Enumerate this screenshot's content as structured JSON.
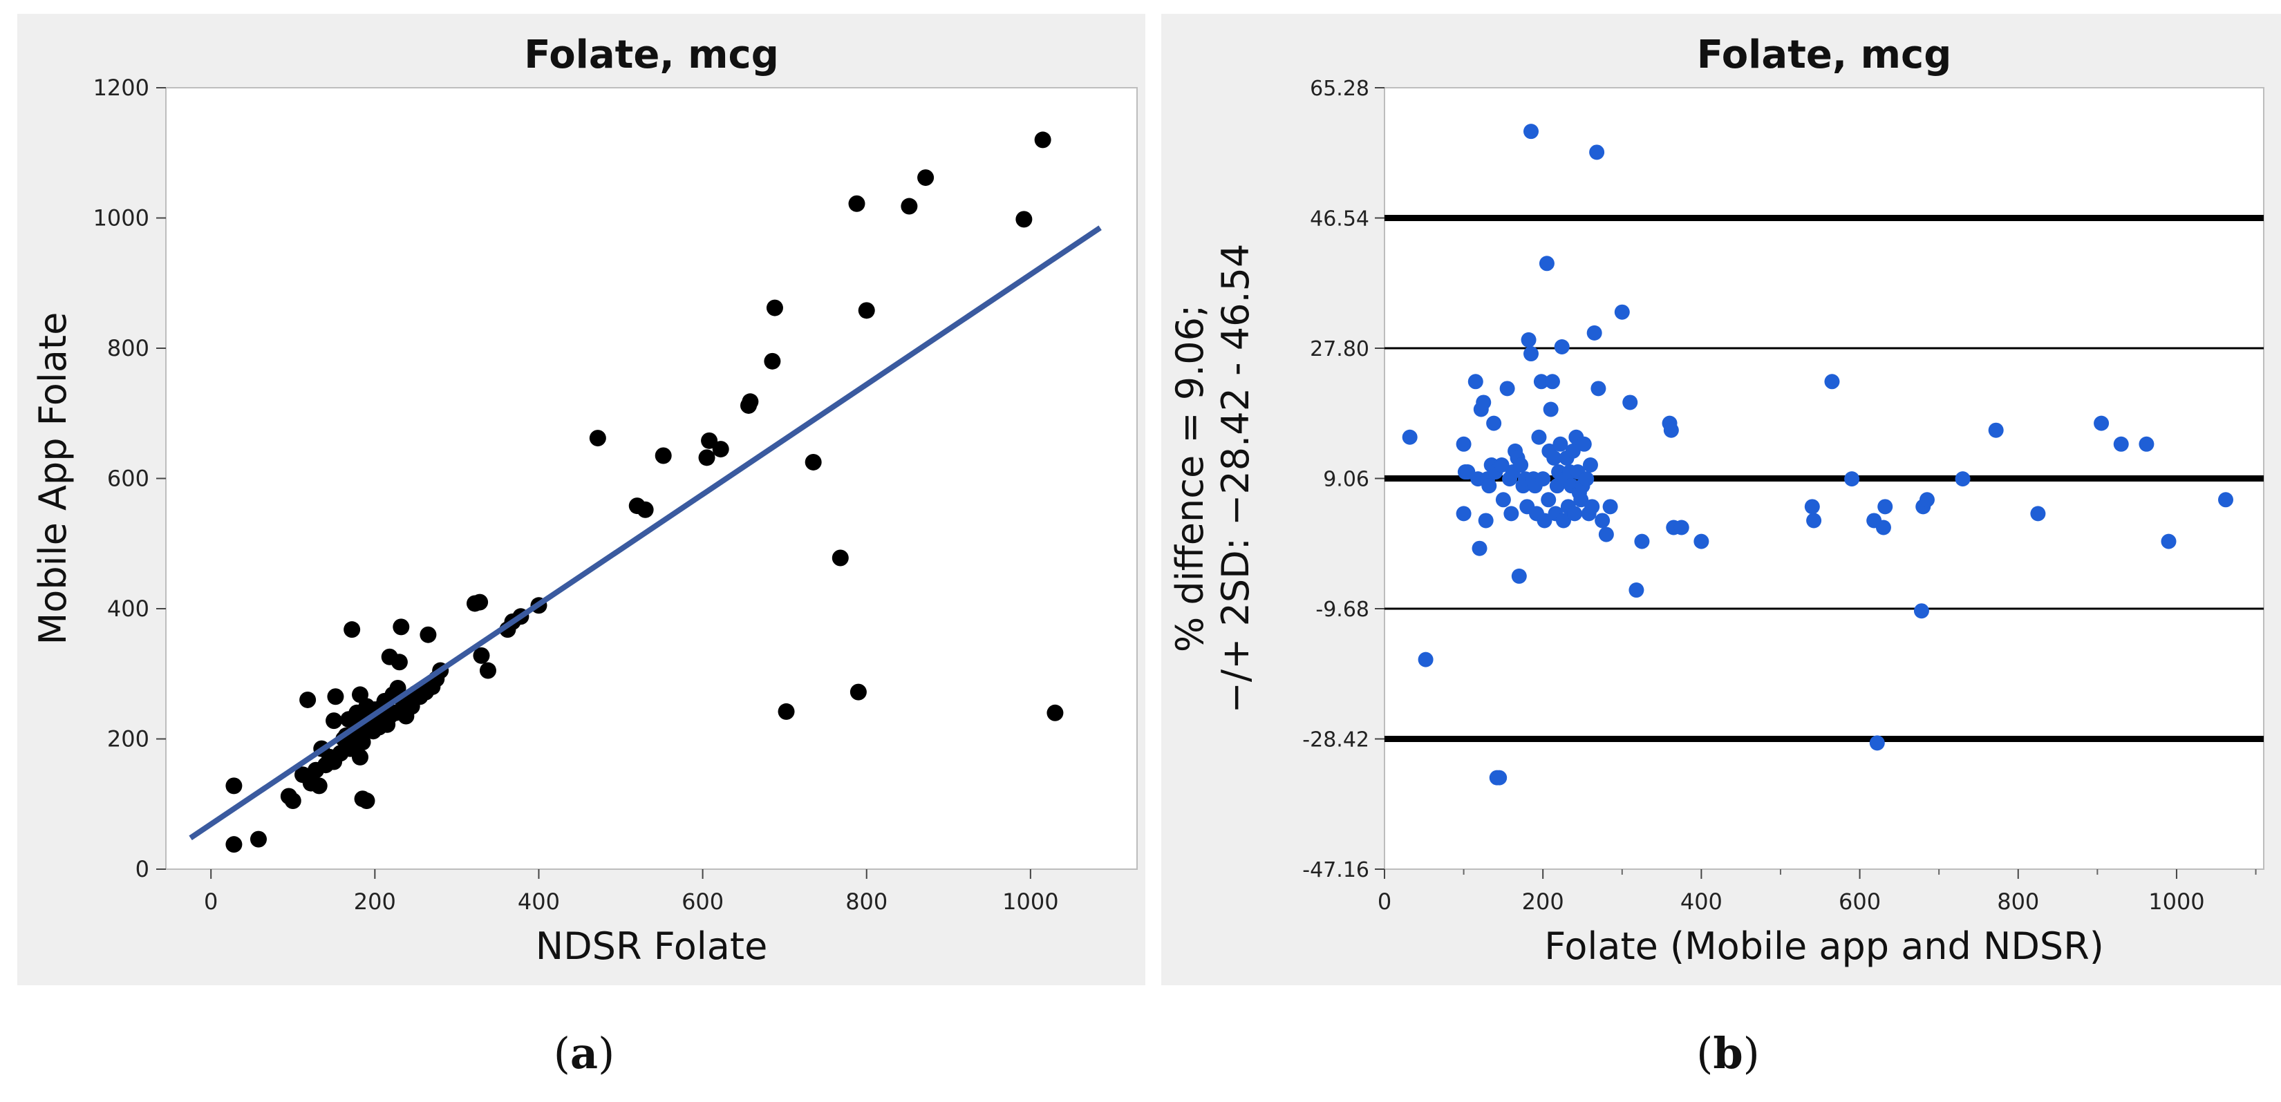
{
  "captions": {
    "a": "a",
    "b": "b"
  },
  "chart_data": [
    {
      "type": "scatter",
      "title": "Folate, mcg",
      "xlabel": "NDSR Folate",
      "ylabel": "Mobile App Folate",
      "xlim": [
        -55,
        1130
      ],
      "ylim": [
        0,
        1200
      ],
      "xticks": [
        0,
        200,
        400,
        600,
        800,
        1000
      ],
      "yticks": [
        0,
        200,
        400,
        600,
        800,
        1000,
        1200
      ],
      "point_color": "#000000",
      "line_color": "#3a5a9f",
      "regression_line": {
        "x": [
          -25,
          1085
        ],
        "y": [
          48,
          985
        ]
      },
      "points": [
        [
          28,
          38
        ],
        [
          28,
          128
        ],
        [
          58,
          46
        ],
        [
          95,
          112
        ],
        [
          100,
          105
        ],
        [
          112,
          145
        ],
        [
          118,
          260
        ],
        [
          122,
          132
        ],
        [
          128,
          152
        ],
        [
          132,
          128
        ],
        [
          135,
          185
        ],
        [
          140,
          160
        ],
        [
          145,
          172
        ],
        [
          150,
          165
        ],
        [
          150,
          228
        ],
        [
          152,
          265
        ],
        [
          158,
          178
        ],
        [
          162,
          200
        ],
        [
          165,
          205
        ],
        [
          168,
          230
        ],
        [
          170,
          185
        ],
        [
          172,
          368
        ],
        [
          175,
          208
        ],
        [
          178,
          240
        ],
        [
          180,
          225
        ],
        [
          182,
          172
        ],
        [
          182,
          268
        ],
        [
          185,
          108
        ],
        [
          185,
          195
        ],
        [
          190,
          105
        ],
        [
          190,
          250
        ],
        [
          192,
          215
        ],
        [
          195,
          230
        ],
        [
          198,
          212
        ],
        [
          200,
          245
        ],
        [
          202,
          228
        ],
        [
          205,
          218
        ],
        [
          208,
          248
        ],
        [
          210,
          232
        ],
        [
          212,
          258
        ],
        [
          215,
          222
        ],
        [
          218,
          235
        ],
        [
          218,
          326
        ],
        [
          222,
          268
        ],
        [
          225,
          240
        ],
        [
          228,
          278
        ],
        [
          230,
          318
        ],
        [
          232,
          372
        ],
        [
          235,
          255
        ],
        [
          238,
          235
        ],
        [
          240,
          262
        ],
        [
          245,
          250
        ],
        [
          250,
          270
        ],
        [
          255,
          265
        ],
        [
          262,
          272
        ],
        [
          265,
          360
        ],
        [
          270,
          280
        ],
        [
          275,
          292
        ],
        [
          280,
          305
        ],
        [
          322,
          408
        ],
        [
          328,
          410
        ],
        [
          330,
          328
        ],
        [
          338,
          305
        ],
        [
          362,
          368
        ],
        [
          368,
          380
        ],
        [
          378,
          388
        ],
        [
          400,
          405
        ],
        [
          472,
          662
        ],
        [
          520,
          558
        ],
        [
          530,
          552
        ],
        [
          552,
          635
        ],
        [
          605,
          632
        ],
        [
          608,
          658
        ],
        [
          622,
          645
        ],
        [
          656,
          712
        ],
        [
          658,
          718
        ],
        [
          685,
          780
        ],
        [
          688,
          862
        ],
        [
          702,
          242
        ],
        [
          735,
          625
        ],
        [
          768,
          478
        ],
        [
          788,
          1022
        ],
        [
          790,
          272
        ],
        [
          800,
          858
        ],
        [
          852,
          1018
        ],
        [
          872,
          1062
        ],
        [
          992,
          998
        ],
        [
          1015,
          1120
        ],
        [
          1030,
          240
        ]
      ]
    },
    {
      "type": "scatter",
      "title": "Folate, mcg",
      "xlabel": "Folate (Mobile app and NDSR)",
      "ylabel_lines": [
        "% diffence = 9.06;",
        "−/+ 2SD: −28.42 - 46.54"
      ],
      "xlim": [
        0,
        1110
      ],
      "ylim": [
        -47.16,
        65.28
      ],
      "xticks": [
        0,
        200,
        400,
        600,
        800,
        1000
      ],
      "yticks": [
        65.28,
        46.54,
        27.8,
        9.06,
        -9.68,
        -28.42,
        -47.16
      ],
      "ytick_labels": [
        "65.28",
        "46.54",
        "27.80",
        "9.06",
        "-9.68",
        "-28.42",
        "-47.16"
      ],
      "point_color": "#1f5fd6",
      "mean_difference": 9.06,
      "limits_of_agreement": [
        -28.42,
        46.54
      ],
      "points": [
        [
          32,
          15
        ],
        [
          52,
          -17
        ],
        [
          100,
          14
        ],
        [
          100,
          4
        ],
        [
          102,
          10
        ],
        [
          105,
          10
        ],
        [
          115,
          23
        ],
        [
          118,
          9
        ],
        [
          120,
          -1
        ],
        [
          122,
          19
        ],
        [
          125,
          20
        ],
        [
          128,
          3
        ],
        [
          130,
          9
        ],
        [
          132,
          8
        ],
        [
          135,
          11
        ],
        [
          138,
          17
        ],
        [
          140,
          10
        ],
        [
          142,
          -34
        ],
        [
          145,
          -34
        ],
        [
          148,
          11
        ],
        [
          150,
          6
        ],
        [
          155,
          22
        ],
        [
          158,
          9
        ],
        [
          160,
          4
        ],
        [
          162,
          10
        ],
        [
          165,
          13
        ],
        [
          168,
          12
        ],
        [
          170,
          -5
        ],
        [
          172,
          11
        ],
        [
          175,
          8
        ],
        [
          178,
          9
        ],
        [
          180,
          5
        ],
        [
          182,
          29
        ],
        [
          185,
          59
        ],
        [
          185,
          27
        ],
        [
          188,
          9
        ],
        [
          190,
          8
        ],
        [
          192,
          4
        ],
        [
          195,
          15
        ],
        [
          198,
          23
        ],
        [
          200,
          9
        ],
        [
          202,
          3
        ],
        [
          205,
          40
        ],
        [
          207,
          6
        ],
        [
          208,
          13
        ],
        [
          210,
          19
        ],
        [
          212,
          23
        ],
        [
          214,
          12
        ],
        [
          216,
          4
        ],
        [
          218,
          8
        ],
        [
          220,
          10
        ],
        [
          222,
          14
        ],
        [
          224,
          28
        ],
        [
          226,
          3
        ],
        [
          228,
          9
        ],
        [
          230,
          12
        ],
        [
          232,
          5
        ],
        [
          234,
          10
        ],
        [
          236,
          8
        ],
        [
          238,
          13
        ],
        [
          240,
          4
        ],
        [
          242,
          15
        ],
        [
          244,
          10
        ],
        [
          246,
          7
        ],
        [
          248,
          6
        ],
        [
          250,
          8
        ],
        [
          252,
          14
        ],
        [
          255,
          9
        ],
        [
          258,
          4
        ],
        [
          260,
          11
        ],
        [
          262,
          5
        ],
        [
          265,
          30
        ],
        [
          268,
          56
        ],
        [
          270,
          22
        ],
        [
          275,
          3
        ],
        [
          280,
          1
        ],
        [
          285,
          5
        ],
        [
          300,
          33
        ],
        [
          310,
          20
        ],
        [
          318,
          -7
        ],
        [
          325,
          0
        ],
        [
          360,
          17
        ],
        [
          362,
          16
        ],
        [
          365,
          2
        ],
        [
          375,
          2
        ],
        [
          400,
          0
        ],
        [
          540,
          5
        ],
        [
          542,
          3
        ],
        [
          565,
          23
        ],
        [
          590,
          9
        ],
        [
          618,
          3
        ],
        [
          622,
          -29
        ],
        [
          630,
          2
        ],
        [
          632,
          5
        ],
        [
          678,
          -10
        ],
        [
          680,
          5
        ],
        [
          685,
          6
        ],
        [
          730,
          9
        ],
        [
          772,
          16
        ],
        [
          825,
          4
        ],
        [
          905,
          17
        ],
        [
          930,
          14
        ],
        [
          962,
          14
        ],
        [
          990,
          0
        ],
        [
          1062,
          6
        ]
      ]
    }
  ]
}
